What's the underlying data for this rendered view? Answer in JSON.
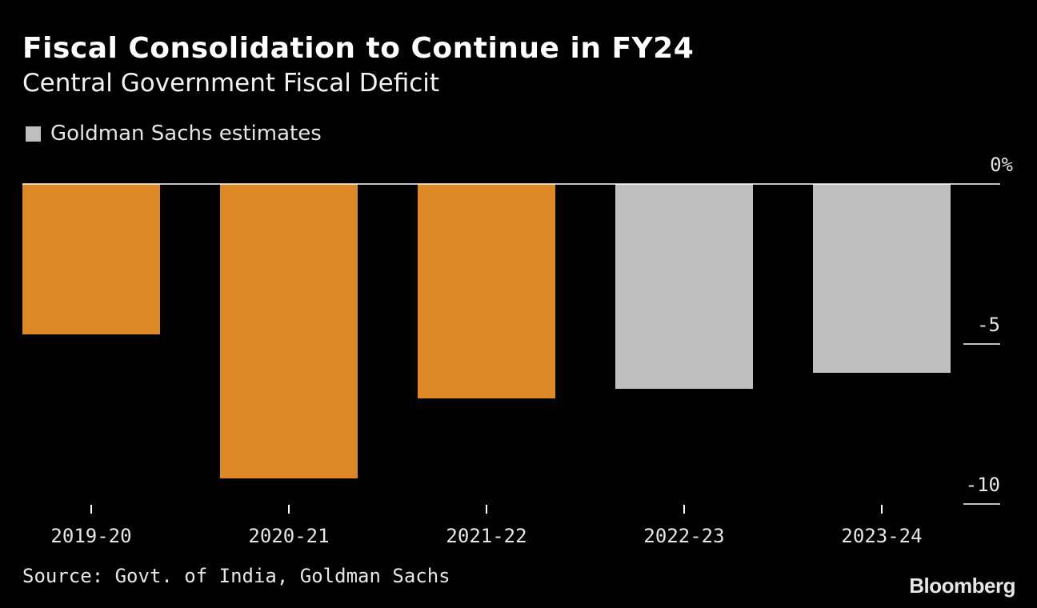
{
  "chart_data": {
    "type": "bar",
    "title": "Fiscal Consolidation to Continue in FY24",
    "subtitle": "Central Government Fiscal Deficit",
    "categories": [
      "2019-20",
      "2020-21",
      "2021-22",
      "2022-23",
      "2023-24"
    ],
    "values": [
      -4.7,
      -9.2,
      -6.7,
      -6.4,
      -5.9
    ],
    "estimate": [
      false,
      false,
      false,
      true,
      true
    ],
    "ylim": [
      -10,
      0
    ],
    "yticks": [
      {
        "value": 0,
        "label": "0%"
      },
      {
        "value": -5,
        "label": "-5"
      },
      {
        "value": -10,
        "label": "-10"
      }
    ],
    "legend": [
      {
        "name": "Goldman Sachs estimates",
        "color": "#bfbfbf"
      }
    ],
    "colors": {
      "actual": "#dc8925",
      "estimate": "#bfbfbf",
      "axis": "#ffffff"
    },
    "xlabel": "",
    "ylabel": ""
  },
  "source": "Source: Govt. of India, Goldman Sachs",
  "brand": "Bloomberg"
}
